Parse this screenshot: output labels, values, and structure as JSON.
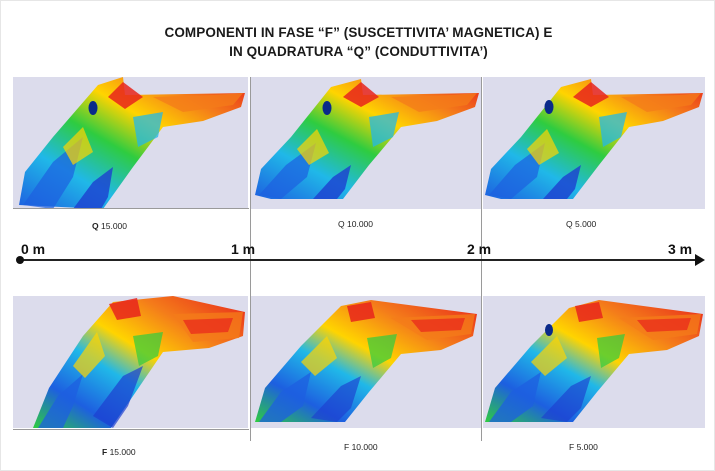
{
  "title": {
    "line1": "COMPONENTI IN FASE “F” (SUSCETTIVITA’ MAGNETICA) E",
    "line2": "IN QUADRATURA “Q” (CONDUTTIVITA’)"
  },
  "top_row": [
    {
      "prefix": "Q",
      "value": "15.000"
    },
    {
      "prefix": "Q",
      "value": "10.000"
    },
    {
      "prefix": "Q",
      "value": "5.000"
    }
  ],
  "bottom_row": [
    {
      "prefix": "F",
      "value": "15.000"
    },
    {
      "prefix": "F",
      "value": "10.000"
    },
    {
      "prefix": "F",
      "value": "5.000"
    }
  ],
  "scale": {
    "labels": [
      "0 m",
      "1 m",
      "2 m",
      "3 m"
    ]
  },
  "colors": {
    "panel_background": "#dcdcec",
    "high": "#e8251c",
    "mid_high": "#ffd400",
    "mid": "#2ecc40",
    "low": "#1d5fe0",
    "very_low": "#0a2a8a"
  }
}
